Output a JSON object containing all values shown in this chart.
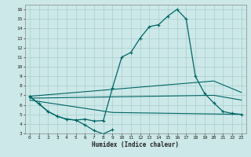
{
  "title": "",
  "xlabel": "Humidex (Indice chaleur)",
  "bg_color": "#cce8e8",
  "line_color": "#006666",
  "grid_color": "#aacece",
  "xlim": [
    -0.5,
    23.5
  ],
  "ylim": [
    3,
    16.5
  ],
  "yticks": [
    3,
    4,
    5,
    6,
    7,
    8,
    9,
    10,
    11,
    12,
    13,
    14,
    15,
    16
  ],
  "xticks": [
    0,
    1,
    2,
    3,
    4,
    5,
    6,
    7,
    8,
    9,
    10,
    11,
    12,
    13,
    14,
    15,
    16,
    17,
    18,
    19,
    20,
    21,
    22,
    23
  ],
  "main_curve": {
    "x": [
      0,
      1,
      2,
      3,
      4,
      5,
      6,
      7,
      8,
      9,
      10,
      11,
      12,
      13,
      14,
      15,
      16,
      17,
      18,
      19,
      20,
      21,
      22,
      23
    ],
    "y": [
      6.9,
      6.1,
      5.3,
      4.8,
      4.5,
      4.4,
      4.5,
      4.3,
      4.35,
      7.8,
      11.0,
      11.5,
      13.0,
      14.2,
      14.4,
      15.3,
      16.0,
      15.0,
      9.0,
      7.2,
      6.2,
      5.3,
      5.1,
      5.0
    ]
  },
  "upper_line": {
    "x": [
      0,
      20,
      23
    ],
    "y": [
      6.9,
      8.5,
      7.3
    ]
  },
  "mid_line": {
    "x": [
      0,
      20,
      23
    ],
    "y": [
      6.7,
      7.0,
      6.5
    ]
  },
  "lower_line": {
    "x": [
      0,
      9,
      23
    ],
    "y": [
      6.5,
      5.2,
      5.0
    ]
  },
  "bottom_curve": {
    "x": [
      0,
      1,
      2,
      3,
      4,
      5,
      6,
      7,
      8,
      9
    ],
    "y": [
      6.9,
      6.1,
      5.3,
      4.8,
      4.5,
      4.4,
      3.9,
      3.3,
      2.95,
      3.4
    ]
  }
}
